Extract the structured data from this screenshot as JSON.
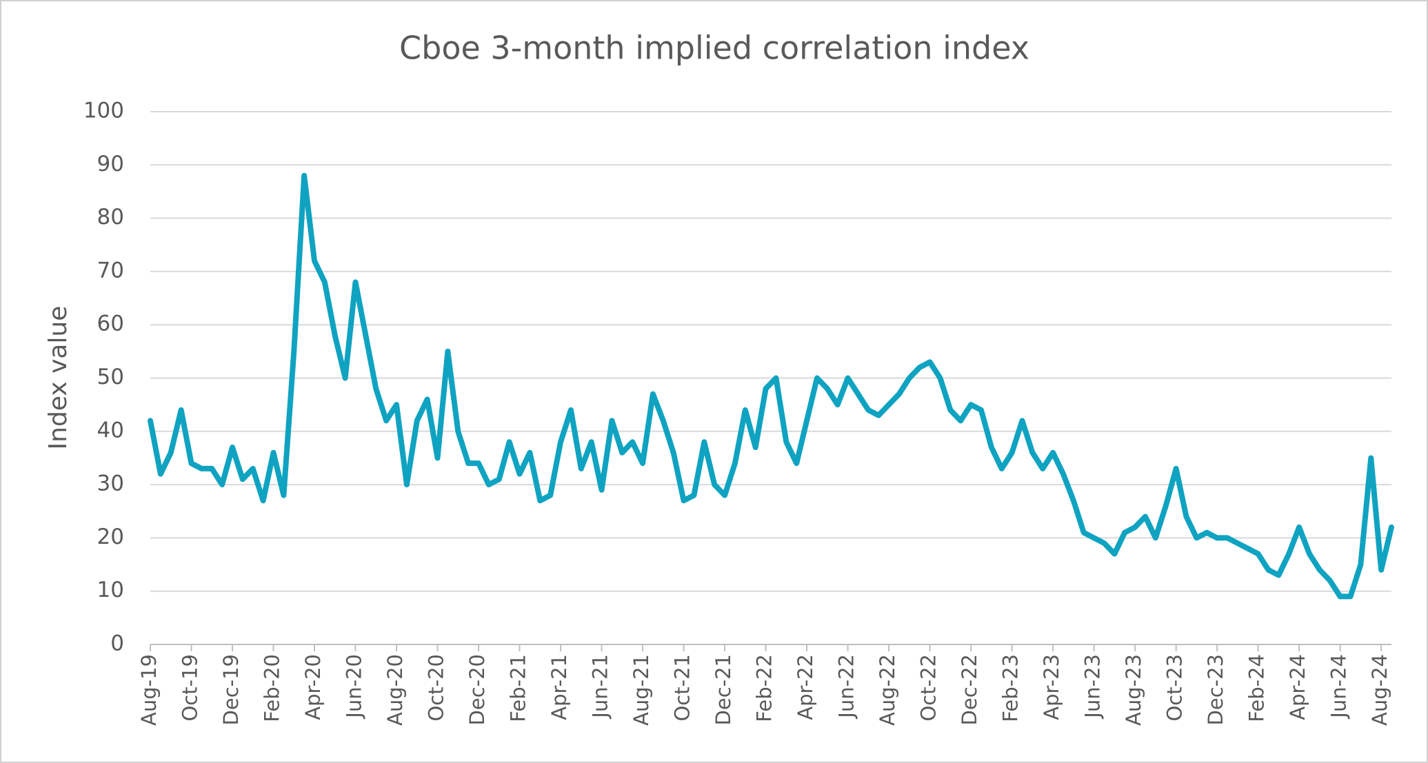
{
  "chart_data": {
    "type": "line",
    "title": "Cboe 3-month implied correlation index",
    "y_label": "Index value",
    "categories": [
      "Aug-19",
      null,
      null,
      null,
      "Oct-19",
      null,
      null,
      null,
      "Dec-19",
      null,
      null,
      null,
      "Feb-20",
      null,
      null,
      null,
      "Apr-20",
      null,
      null,
      null,
      "Jun-20",
      null,
      null,
      null,
      "Aug-20",
      null,
      null,
      null,
      "Oct-20",
      null,
      null,
      null,
      "Dec-20",
      null,
      null,
      null,
      "Feb-21",
      null,
      null,
      null,
      "Apr-21",
      null,
      null,
      null,
      "Jun-21",
      null,
      null,
      null,
      "Aug-21",
      null,
      null,
      null,
      "Oct-21",
      null,
      null,
      null,
      "Dec-21",
      null,
      null,
      null,
      "Feb-22",
      null,
      null,
      null,
      "Apr-22",
      null,
      null,
      null,
      "Jun-22",
      null,
      null,
      null,
      "Aug-22",
      null,
      null,
      null,
      "Oct-22",
      null,
      null,
      null,
      "Dec-22",
      null,
      null,
      null,
      "Feb-23",
      null,
      null,
      null,
      "Apr-23",
      null,
      null,
      null,
      "Jun-23",
      null,
      null,
      null,
      "Aug-23",
      null,
      null,
      null,
      "Oct-23",
      null,
      null,
      null,
      "Dec-23",
      null,
      null,
      null,
      "Feb-24",
      null,
      null,
      null,
      "Apr-24",
      null,
      null,
      null,
      "Jun-24",
      null,
      null,
      null,
      "Aug-24",
      null
    ],
    "series": [
      {
        "name": "Cboe 3-month implied correlation index",
        "color": "#0fa3c1",
        "values": [
          42,
          32,
          36,
          44,
          34,
          33,
          33,
          30,
          37,
          31,
          33,
          27,
          36,
          28,
          55,
          88,
          72,
          68,
          58,
          50,
          68,
          58,
          48,
          42,
          45,
          30,
          42,
          46,
          35,
          55,
          40,
          34,
          34,
          30,
          31,
          38,
          32,
          36,
          27,
          28,
          38,
          44,
          33,
          38,
          29,
          42,
          36,
          38,
          34,
          47,
          42,
          36,
          27,
          28,
          38,
          30,
          28,
          34,
          44,
          37,
          48,
          50,
          38,
          34,
          42,
          50,
          48,
          45,
          50,
          47,
          44,
          43,
          45,
          47,
          50,
          52,
          53,
          50,
          44,
          42,
          45,
          44,
          37,
          33,
          36,
          42,
          36,
          33,
          36,
          32,
          27,
          21,
          20,
          19,
          17,
          21,
          22,
          24,
          20,
          26,
          33,
          24,
          20,
          21,
          20,
          20,
          19,
          18,
          17,
          14,
          13,
          17,
          22,
          17,
          14,
          12,
          9,
          9,
          15,
          35,
          14,
          22
        ]
      }
    ],
    "ylim": [
      0,
      100
    ],
    "yticks": [
      0,
      10,
      20,
      30,
      40,
      50,
      60,
      70,
      80,
      90,
      100
    ],
    "grid": true
  }
}
